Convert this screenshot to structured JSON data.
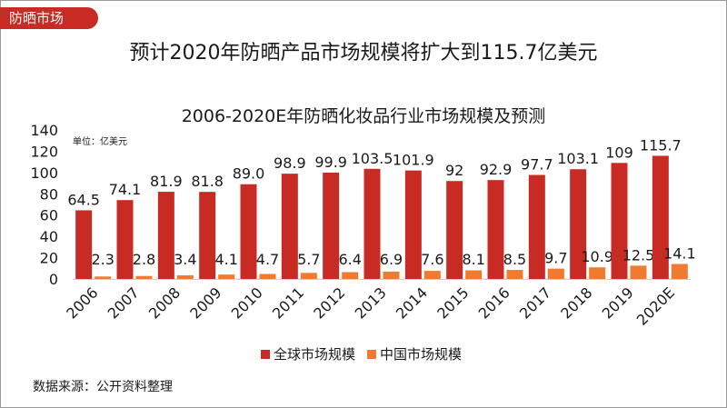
{
  "tag": "防晒市场",
  "main_title": "预计2020年防晒产品市场规模将扩大到115.7亿美元",
  "source": "数据来源：公开资料整理",
  "colors": {
    "global": "#c82a24",
    "china": "#ef7b30",
    "tag": "#c82a24"
  },
  "chart_data": {
    "type": "bar",
    "title": "2006-2020E年防晒化妆品行业市场规模及预测",
    "unit_label": "单位：亿美元",
    "categories": [
      "2006",
      "2007",
      "2008",
      "2009",
      "2010",
      "2011",
      "2012",
      "2013",
      "2014",
      "2015",
      "2016",
      "2017",
      "2018",
      "2019",
      "2020E"
    ],
    "series": [
      {
        "name": "全球市场规模",
        "values": [
          64.5,
          74.1,
          81.9,
          81.8,
          89.0,
          98.9,
          99.9,
          103.5,
          101.9,
          92,
          92.9,
          97.7,
          103.1,
          109,
          115.7
        ],
        "labels": [
          "64.5",
          "74.1",
          "81.9",
          "81.8",
          "89.0",
          "98.9",
          "99.9",
          "103.5",
          "101.9",
          "92",
          "92.9",
          "97.7",
          "103.1",
          "109",
          "115.7"
        ]
      },
      {
        "name": "中国市场规模",
        "values": [
          2.3,
          2.8,
          3.4,
          4.1,
          4.7,
          5.7,
          6.4,
          6.9,
          7.6,
          8.1,
          8.5,
          9.7,
          10.9,
          12.5,
          14.1
        ],
        "labels": [
          "2.3",
          "2.8",
          "3.4",
          "4.1",
          "4.7",
          "5.7",
          "6.4",
          "6.9",
          "7.6",
          "8.1",
          "8.5",
          "9.7",
          "10.9",
          "12.5",
          "14.1"
        ]
      }
    ],
    "yticks": [
      "0",
      "20",
      "40",
      "60",
      "80",
      "100",
      "120",
      "140"
    ],
    "ylim": [
      0,
      140
    ],
    "grid": false,
    "legend_position": "bottom"
  }
}
